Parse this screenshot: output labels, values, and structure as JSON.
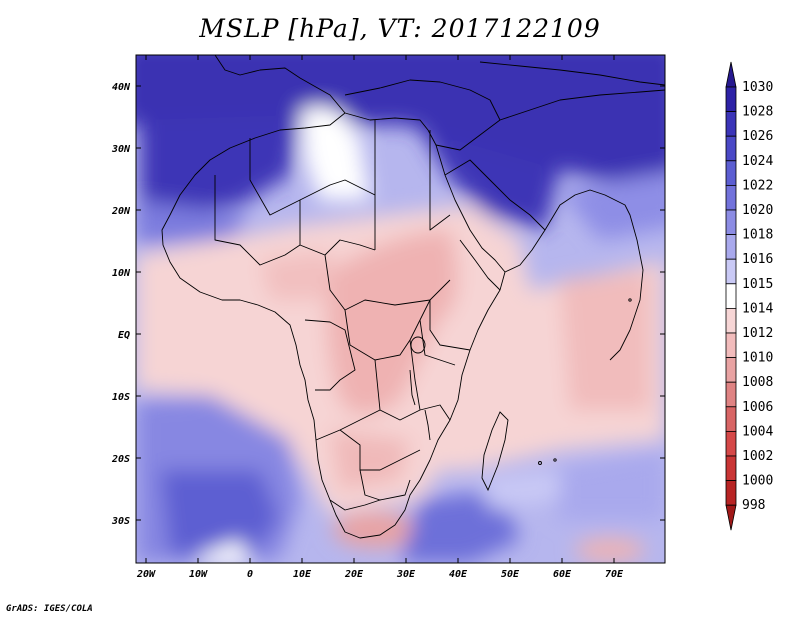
{
  "title": "MSLP [hPa], VT: 2017122109",
  "variable": "MSLP",
  "units": "hPa",
  "valid_time": "2017122109",
  "latitude_labels": [
    "40N",
    "30N",
    "20N",
    "10N",
    "EQ",
    "10S",
    "20S",
    "30S"
  ],
  "longitude_labels": [
    "20W",
    "10W",
    "0",
    "10E",
    "20E",
    "30E",
    "40E",
    "50E",
    "60E",
    "70E"
  ],
  "colorbar": {
    "levels": [
      "1030",
      "1028",
      "1026",
      "1024",
      "1022",
      "1020",
      "1018",
      "1016",
      "1015",
      "1014",
      "1012",
      "1010",
      "1008",
      "1006",
      "1004",
      "1002",
      "1000",
      "998"
    ],
    "colors": [
      "#26188f",
      "#2d22a6",
      "#3b34b8",
      "#4a48c6",
      "#5c5ed2",
      "#7272db",
      "#8c8ce4",
      "#a9a9ed",
      "#c9c9f5",
      "#ffffff",
      "#f7d6d6",
      "#f2bcbc",
      "#e9a3a3",
      "#df8383",
      "#d86565",
      "#d54848",
      "#c93535",
      "#b82424",
      "#a01818"
    ]
  },
  "credit": "GrADS: IGES/COLA"
}
